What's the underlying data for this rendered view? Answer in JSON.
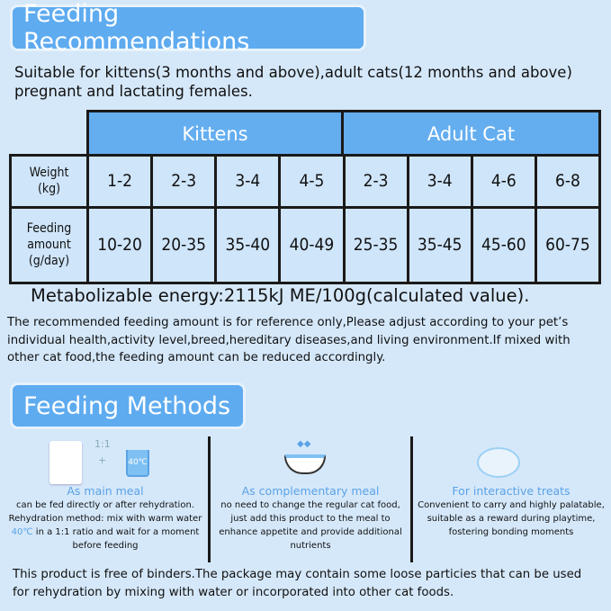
{
  "title": "Feeding Recommendations",
  "intro": [
    "Suitable for kittens(3 months and above),adult cats(12 months and above)",
    "pregnant and lactating females."
  ],
  "table": {
    "groups": [
      "Kittens",
      "Adult Cat"
    ],
    "rows": [
      {
        "label": [
          "Weight",
          "(kg)"
        ],
        "values": [
          "1-2",
          "2-3",
          "3-4",
          "4-5",
          "2-3",
          "3-4",
          "4-6",
          "6-8"
        ]
      },
      {
        "label": [
          "Feeding",
          "amount",
          "(g/day)"
        ],
        "values": [
          "10-20",
          "20-35",
          "35-40",
          "40-49",
          "25-35",
          "35-45",
          "45-60",
          "60-75"
        ]
      }
    ]
  },
  "energy": "Metabolizable energy:2115kJ  ME/100g(calculated value).",
  "note": [
    "The recommended feeding amount is for reference only,Please adjust according to your pet’s",
    "individual  health,activity  level,breed,hereditary diseases,and living environment.If mixed with",
    "other cat food,the feeding amount can be reduced accordingly."
  ],
  "methods_title": "Feeding Methods",
  "methods": [
    {
      "title": "As main meal",
      "ratio": "1:1",
      "plus": "+",
      "cup_temp": "40℃",
      "lines": [
        "can be fed directly  or  after rehydration.",
        "Rehydration method: mix with warm water"
      ],
      "temp": "40℃",
      "line3": " in a 1:1 ratio and wait for a moment",
      "line4": "before feeding"
    },
    {
      "title": "As complementary meal",
      "lines": [
        "no need to change the regular cat food,",
        "just add this product to the meal to",
        "enhance appetite and provide additional",
        "nutrients"
      ]
    },
    {
      "title": "For interactive treats",
      "lines": [
        "Convenient to carry and highly palatable,",
        "suitable as a reward during playtime,",
        "fostering bonding moments"
      ]
    }
  ],
  "footer": [
    "This product is free of binders.The package may contain some loose particies that can be  used",
    "for rehydration  by mixing with water or incorporated  into other cat  foods."
  ]
}
